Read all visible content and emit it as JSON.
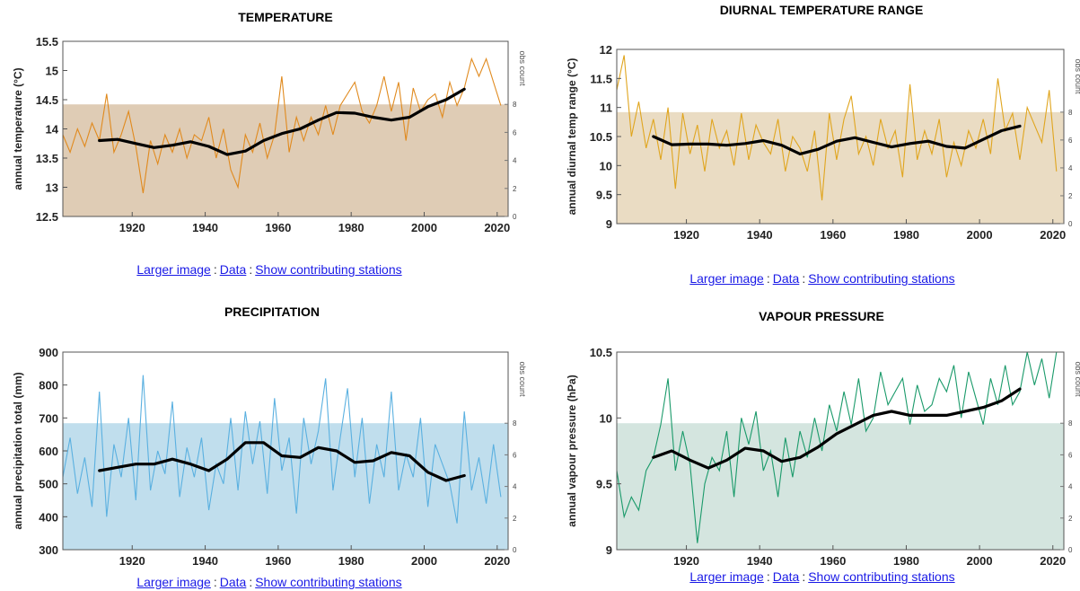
{
  "links": {
    "larger": "Larger image",
    "sep": ":",
    "data": "Data",
    "stations": "Show contributing stations"
  },
  "chart_data": [
    {
      "type": "line",
      "title": "TEMPERATURE",
      "ylabel": "annual temperature (°C)",
      "y2label": "obs count",
      "xlim": [
        1901,
        2023
      ],
      "ylim": [
        12.5,
        15.5
      ],
      "xticks": [
        1920,
        1940,
        1960,
        1980,
        2000,
        2020
      ],
      "yticks": [
        12.5,
        13,
        13.5,
        14,
        14.5,
        15,
        15.5
      ],
      "y2ticks": [
        0,
        2,
        4,
        6,
        8
      ],
      "y2lim": [
        0,
        12.5
      ],
      "line_color": "#e08a1e",
      "fill_color": "#d9c3a8",
      "obs_count_level": 8,
      "series": [
        {
          "x": [
            1901,
            1903,
            1905,
            1907,
            1909,
            1911,
            1913,
            1915,
            1917,
            1919,
            1921,
            1923,
            1925,
            1927,
            1929,
            1931,
            1933,
            1935,
            1937,
            1939,
            1941,
            1943,
            1945,
            1947,
            1949,
            1951,
            1953,
            1955,
            1957,
            1959,
            1961,
            1963,
            1965,
            1967,
            1969,
            1971,
            1973,
            1975,
            1977,
            1979,
            1981,
            1983,
            1985,
            1987,
            1989,
            1991,
            1993,
            1995,
            1997,
            1999,
            2001,
            2003,
            2005,
            2007,
            2009,
            2011,
            2013,
            2015,
            2017,
            2019,
            2021
          ],
          "values": [
            13.9,
            13.6,
            14.0,
            13.7,
            14.1,
            13.8,
            14.6,
            13.6,
            13.9,
            14.3,
            13.7,
            12.9,
            13.8,
            13.4,
            13.9,
            13.6,
            14.0,
            13.5,
            13.9,
            13.8,
            14.2,
            13.5,
            14.0,
            13.3,
            13.0,
            13.9,
            13.6,
            14.1,
            13.5,
            13.9,
            14.9,
            13.6,
            14.2,
            13.8,
            14.2,
            13.9,
            14.4,
            13.9,
            14.4,
            14.6,
            14.8,
            14.3,
            14.1,
            14.4,
            14.9,
            14.3,
            14.8,
            13.8,
            14.7,
            14.3,
            14.5,
            14.6,
            14.2,
            14.8,
            14.4,
            14.7,
            15.2,
            14.9,
            15.2,
            14.8,
            14.4
          ]
        },
        {
          "x": [
            1911,
            1916,
            1921,
            1926,
            1931,
            1936,
            1941,
            1946,
            1951,
            1956,
            1961,
            1966,
            1971,
            1976,
            1981,
            1986,
            1991,
            1996,
            2001,
            2006,
            2011
          ],
          "values": [
            13.8,
            13.82,
            13.75,
            13.68,
            13.72,
            13.78,
            13.7,
            13.56,
            13.62,
            13.8,
            13.92,
            14.0,
            14.15,
            14.28,
            14.27,
            14.2,
            14.15,
            14.2,
            14.38,
            14.5,
            14.68
          ]
        }
      ]
    },
    {
      "type": "line",
      "title": "DIURNAL TEMPERATURE RANGE",
      "ylabel": "annual diurnal temp range (°C)",
      "y2label": "obs count",
      "xlim": [
        1901,
        2023
      ],
      "ylim": [
        9,
        12
      ],
      "xticks": [
        1920,
        1940,
        1960,
        1980,
        2000,
        2020
      ],
      "yticks": [
        9,
        9.5,
        10,
        10.5,
        11,
        11.5,
        12
      ],
      "y2ticks": [
        0,
        2,
        4,
        6,
        8
      ],
      "y2lim": [
        0,
        12.5
      ],
      "line_color": "#e0a51e",
      "fill_color": "#e6d6b8",
      "obs_count_level": 8,
      "series": [
        {
          "x": [
            1901,
            1903,
            1905,
            1907,
            1909,
            1911,
            1913,
            1915,
            1917,
            1919,
            1921,
            1923,
            1925,
            1927,
            1929,
            1931,
            1933,
            1935,
            1937,
            1939,
            1941,
            1943,
            1945,
            1947,
            1949,
            1951,
            1953,
            1955,
            1957,
            1959,
            1961,
            1963,
            1965,
            1967,
            1969,
            1971,
            1973,
            1975,
            1977,
            1979,
            1981,
            1983,
            1985,
            1987,
            1989,
            1991,
            1993,
            1995,
            1997,
            1999,
            2001,
            2003,
            2005,
            2007,
            2009,
            2011,
            2013,
            2015,
            2017,
            2019,
            2021
          ],
          "values": [
            11.3,
            11.9,
            10.5,
            11.1,
            10.3,
            10.8,
            10.1,
            11.0,
            9.6,
            10.9,
            10.2,
            10.7,
            9.9,
            10.8,
            10.3,
            10.6,
            10.0,
            10.9,
            10.1,
            10.7,
            10.4,
            10.2,
            10.8,
            9.9,
            10.5,
            10.3,
            9.9,
            10.6,
            9.4,
            10.9,
            10.1,
            10.8,
            11.2,
            10.2,
            10.5,
            10.0,
            10.8,
            10.3,
            10.6,
            9.8,
            11.4,
            10.1,
            10.6,
            10.2,
            10.8,
            9.8,
            10.4,
            10.0,
            10.6,
            10.3,
            10.8,
            10.2,
            11.5,
            10.6,
            10.9,
            10.1,
            11.0,
            10.7,
            10.4,
            11.3,
            9.9
          ]
        },
        {
          "x": [
            1911,
            1916,
            1921,
            1926,
            1931,
            1936,
            1941,
            1946,
            1951,
            1956,
            1961,
            1966,
            1971,
            1976,
            1981,
            1986,
            1991,
            1996,
            2001,
            2006,
            2011
          ],
          "values": [
            10.5,
            10.36,
            10.37,
            10.37,
            10.35,
            10.38,
            10.43,
            10.35,
            10.2,
            10.28,
            10.42,
            10.48,
            10.4,
            10.32,
            10.38,
            10.42,
            10.33,
            10.3,
            10.45,
            10.6,
            10.68
          ]
        }
      ]
    },
    {
      "type": "line",
      "title": "PRECIPITATION",
      "ylabel": "annual precipitation total (mm)",
      "y2label": "obs count",
      "xlim": [
        1901,
        2023
      ],
      "ylim": [
        300,
        900
      ],
      "xticks": [
        1920,
        1940,
        1960,
        1980,
        2000,
        2020
      ],
      "yticks": [
        300,
        400,
        500,
        600,
        700,
        800,
        900
      ],
      "y2ticks": [
        0,
        2,
        4,
        6,
        8
      ],
      "y2lim": [
        0,
        12.5
      ],
      "line_color": "#5ab0e0",
      "fill_color": "#b5d8ea",
      "obs_count_level": 8,
      "series": [
        {
          "x": [
            1901,
            1903,
            1905,
            1907,
            1909,
            1911,
            1913,
            1915,
            1917,
            1919,
            1921,
            1923,
            1925,
            1927,
            1929,
            1931,
            1933,
            1935,
            1937,
            1939,
            1941,
            1943,
            1945,
            1947,
            1949,
            1951,
            1953,
            1955,
            1957,
            1959,
            1961,
            1963,
            1965,
            1967,
            1969,
            1971,
            1973,
            1975,
            1977,
            1979,
            1981,
            1983,
            1985,
            1987,
            1989,
            1991,
            1993,
            1995,
            1997,
            1999,
            2001,
            2003,
            2005,
            2007,
            2009,
            2011,
            2013,
            2015,
            2017,
            2019,
            2021
          ],
          "values": [
            520,
            640,
            470,
            580,
            430,
            780,
            400,
            620,
            520,
            700,
            450,
            830,
            480,
            600,
            530,
            750,
            460,
            610,
            520,
            640,
            420,
            560,
            500,
            700,
            480,
            720,
            560,
            690,
            470,
            760,
            540,
            640,
            410,
            700,
            560,
            660,
            820,
            480,
            640,
            790,
            520,
            700,
            440,
            620,
            520,
            780,
            480,
            590,
            520,
            700,
            430,
            620,
            560,
            500,
            380,
            720,
            480,
            580,
            440,
            620,
            460
          ]
        },
        {
          "x": [
            1911,
            1916,
            1921,
            1926,
            1931,
            1936,
            1941,
            1946,
            1951,
            1956,
            1961,
            1966,
            1971,
            1976,
            1981,
            1986,
            1991,
            1996,
            2001,
            2006,
            2011
          ],
          "values": [
            540,
            550,
            560,
            560,
            575,
            560,
            540,
            575,
            625,
            625,
            585,
            580,
            610,
            600,
            565,
            570,
            595,
            585,
            535,
            510,
            525
          ]
        }
      ]
    },
    {
      "type": "line",
      "title": "VAPOUR PRESSURE",
      "ylabel": "annual vapour pressure (hPa)",
      "y2label": "obs count",
      "xlim": [
        1901,
        2023
      ],
      "ylim": [
        9,
        10.5
      ],
      "xticks": [
        1920,
        1940,
        1960,
        1980,
        2000,
        2020
      ],
      "yticks": [
        9,
        9.5,
        10,
        10.5
      ],
      "y2ticks": [
        0,
        2,
        4,
        6,
        8
      ],
      "y2lim": [
        0,
        12.5
      ],
      "line_color": "#1a9a6a",
      "fill_color": "#cce0d9",
      "obs_count_level": 8,
      "series": [
        {
          "x": [
            1901,
            1903,
            1905,
            1907,
            1909,
            1911,
            1913,
            1915,
            1917,
            1919,
            1921,
            1923,
            1925,
            1927,
            1929,
            1931,
            1933,
            1935,
            1937,
            1939,
            1941,
            1943,
            1945,
            1947,
            1949,
            1951,
            1953,
            1955,
            1957,
            1959,
            1961,
            1963,
            1965,
            1967,
            1969,
            1971,
            1973,
            1975,
            1977,
            1979,
            1981,
            1983,
            1985,
            1987,
            1989,
            1991,
            1993,
            1995,
            1997,
            1999,
            2001,
            2003,
            2005,
            2007,
            2009,
            2011,
            2013,
            2015,
            2017,
            2019,
            2021
          ],
          "values": [
            9.6,
            9.25,
            9.4,
            9.3,
            9.6,
            9.7,
            9.95,
            10.3,
            9.6,
            9.9,
            9.65,
            9.05,
            9.5,
            9.7,
            9.6,
            9.9,
            9.4,
            10.0,
            9.8,
            10.05,
            9.6,
            9.75,
            9.4,
            9.85,
            9.55,
            9.9,
            9.7,
            10.0,
            9.75,
            10.1,
            9.9,
            10.2,
            9.95,
            10.3,
            9.9,
            10.0,
            10.35,
            10.1,
            10.2,
            10.3,
            9.95,
            10.25,
            10.05,
            10.1,
            10.3,
            10.2,
            10.4,
            10.0,
            10.35,
            10.15,
            9.95,
            10.3,
            10.1,
            10.4,
            10.1,
            10.2,
            10.5,
            10.25,
            10.45,
            10.15,
            10.5
          ]
        },
        {
          "x": [
            1911,
            1916,
            1921,
            1926,
            1931,
            1936,
            1941,
            1946,
            1951,
            1956,
            1961,
            1966,
            1971,
            1976,
            1981,
            1986,
            1991,
            1996,
            2001,
            2006,
            2011
          ],
          "values": [
            9.7,
            9.75,
            9.68,
            9.62,
            9.68,
            9.77,
            9.75,
            9.67,
            9.7,
            9.78,
            9.88,
            9.95,
            10.02,
            10.05,
            10.02,
            10.02,
            10.02,
            10.05,
            10.08,
            10.13,
            10.22
          ]
        }
      ]
    }
  ]
}
